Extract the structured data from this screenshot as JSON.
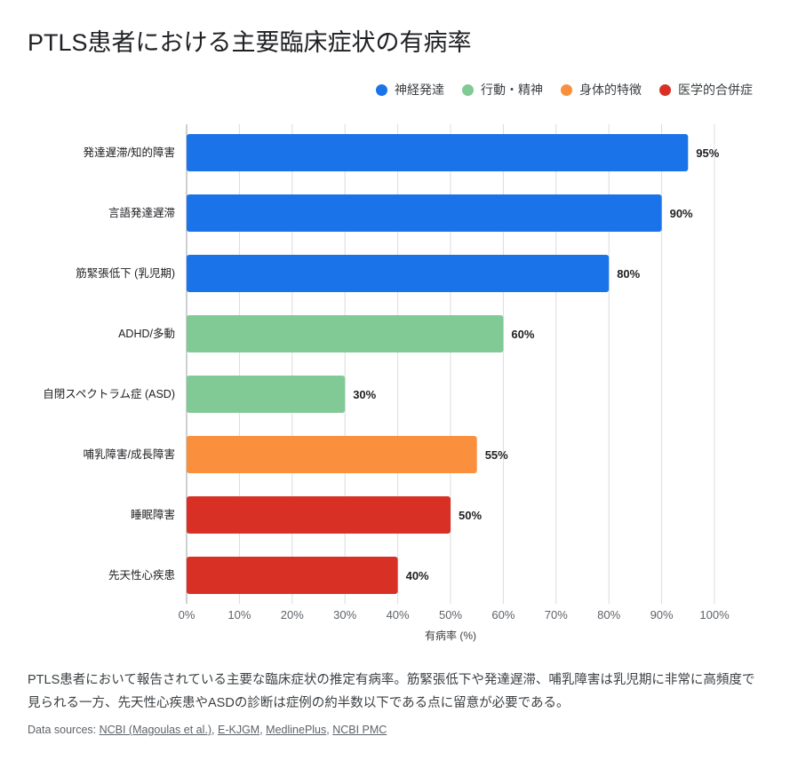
{
  "title": "PTLS患者における主要臨床症状の有病率",
  "legend": [
    {
      "label": "神経発達",
      "color": "#1a73e8"
    },
    {
      "label": "行動・精神",
      "color": "#81c995"
    },
    {
      "label": "身体的特徴",
      "color": "#fa903e"
    },
    {
      "label": "医学的合併症",
      "color": "#d93025"
    }
  ],
  "chart_data": {
    "type": "bar",
    "orientation": "horizontal",
    "categories": [
      "発達遅滞/知的障害",
      "言語発達遅滞",
      "筋緊張低下 (乳児期)",
      "ADHD/多動",
      "自閉スペクトラム症 (ASD)",
      "哺乳障害/成長障害",
      "睡眠障害",
      "先天性心疾患"
    ],
    "values": [
      95,
      90,
      80,
      60,
      30,
      55,
      50,
      40
    ],
    "groups": [
      "神経発達",
      "神経発達",
      "神経発達",
      "行動・精神",
      "行動・精神",
      "身体的特徴",
      "医学的合併症",
      "医学的合併症"
    ],
    "data_labels": [
      "95%",
      "90%",
      "80%",
      "60%",
      "30%",
      "55%",
      "50%",
      "40%"
    ],
    "xlabel": "有病率 (%)",
    "xlim": [
      0,
      100
    ],
    "xticks": [
      "0%",
      "10%",
      "20%",
      "30%",
      "40%",
      "50%",
      "60%",
      "70%",
      "80%",
      "90%",
      "100%"
    ],
    "grid": true,
    "legend_position": "top-right"
  },
  "description": "PTLS患者において報告されている主要な臨床症状の推定有病率。筋緊張低下や発達遅滞、哺乳障害は乳児期に非常に高頻度で見られる一方、先天性心疾患やASDの診断は症例の約半数以下である点に留意が必要である。",
  "sources": {
    "prefix": "Data sources: ",
    "links": [
      "NCBI (Magoulas et al.)",
      "E-KJGM",
      "MedlinePlus",
      "NCBI PMC"
    ]
  }
}
